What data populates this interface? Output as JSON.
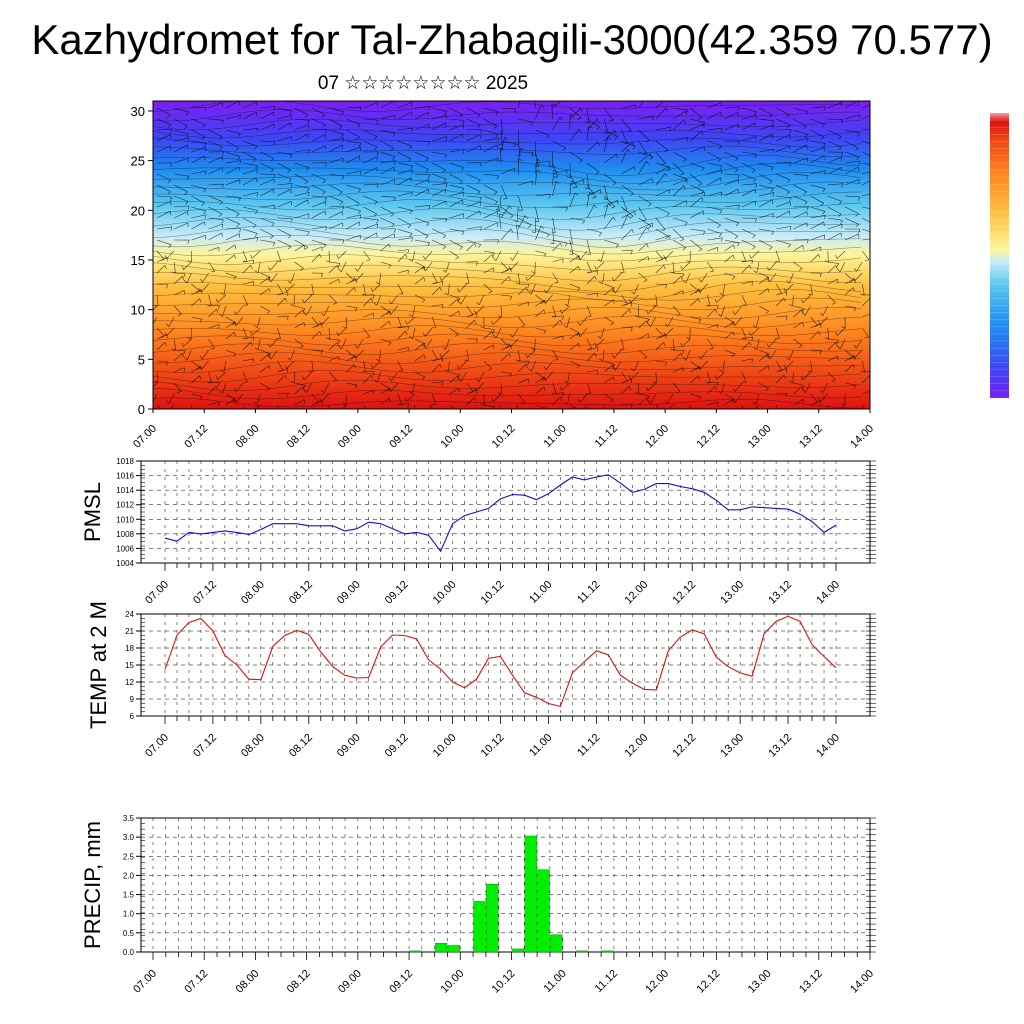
{
  "header": {
    "title": "Kazhydromet for Tal-Zhabagili-3000(42.359 70.577)",
    "subtitle": "07 ☆☆☆☆☆☆☆☆ 2025"
  },
  "colors": {
    "pmsl_line": "#1010cc",
    "temp_line": "#dd1010",
    "precip_bar": "#00ee00",
    "precip_bar_edge": "#009900",
    "grid": "#000000"
  },
  "chart_data": [
    {
      "type": "heatmap",
      "yticks": [
        "0",
        "5",
        "10",
        "15",
        "20",
        "25",
        "30"
      ],
      "ylim": [
        0,
        31
      ],
      "xticks": [
        "07.00",
        "07.12",
        "08.00",
        "08.12",
        "09.00",
        "09.12",
        "10.00",
        "10.12",
        "11.00",
        "11.12",
        "12.00",
        "12.12",
        "13.00",
        "13.12",
        "14.00"
      ],
      "colormap": [
        "#7a1ff0",
        "#3f44f4",
        "#1e8cf0",
        "#5cc8f0",
        "#c8ecf8",
        "#fff59a",
        "#ffc040",
        "#ff8a20",
        "#f04a16",
        "#dd1212"
      ],
      "legend": "right colorbar, unlabeled",
      "overlay": "wind barbs"
    },
    {
      "type": "line",
      "ylabel": "PMSL",
      "yticks": [
        "1004",
        "1006",
        "1008",
        "1010",
        "1012",
        "1014",
        "1016",
        "1018"
      ],
      "ylim": [
        1004,
        1018
      ],
      "xticks": [
        "07.00",
        "07.12",
        "08.00",
        "08.12",
        "09.00",
        "09.12",
        "10.00",
        "10.12",
        "11.00",
        "11.12",
        "12.00",
        "12.12",
        "13.00",
        "13.12",
        "14.00"
      ],
      "x_hours": [
        0,
        3,
        6,
        9,
        12,
        15,
        18,
        21,
        24,
        27,
        30,
        33,
        36,
        39,
        42,
        45,
        48,
        51,
        54,
        57,
        60,
        63,
        66,
        69,
        72,
        75,
        78,
        81,
        84,
        87,
        90,
        93,
        96,
        99,
        102,
        105,
        108,
        111,
        114,
        117,
        120,
        123,
        126,
        129,
        132,
        135,
        138,
        141,
        144,
        147,
        150,
        153,
        156,
        159,
        162,
        165,
        168
      ],
      "values": [
        1007.4,
        1007.0,
        1008.2,
        1008.0,
        1008.2,
        1008.4,
        1008.2,
        1007.9,
        1008.6,
        1009.4,
        1009.4,
        1009.4,
        1009.1,
        1009.1,
        1009.1,
        1008.4,
        1008.7,
        1009.6,
        1009.4,
        1008.7,
        1008.0,
        1008.2,
        1007.8,
        1005.6,
        1009.4,
        1010.5,
        1011.0,
        1011.5,
        1012.8,
        1013.4,
        1013.3,
        1012.7,
        1013.5,
        1014.7,
        1015.8,
        1015.4,
        1015.8,
        1016.1,
        1015.0,
        1013.7,
        1014.1,
        1014.9,
        1014.9,
        1014.5,
        1014.2,
        1013.7,
        1012.6,
        1011.3,
        1011.3,
        1011.7,
        1011.6,
        1011.5,
        1011.4,
        1010.7,
        1009.7,
        1008.2,
        1009.2
      ]
    },
    {
      "type": "line",
      "ylabel": "TEMP at 2 M",
      "yticks": [
        "6",
        "9",
        "12",
        "15",
        "18",
        "21",
        "24"
      ],
      "ylim": [
        6,
        24
      ],
      "xticks": [
        "07.00",
        "07.12",
        "08.00",
        "08.12",
        "09.00",
        "09.12",
        "10.00",
        "10.12",
        "11.00",
        "11.12",
        "12.00",
        "12.12",
        "13.00",
        "13.12",
        "14.00"
      ],
      "x_hours": [
        0,
        3,
        6,
        9,
        12,
        15,
        18,
        21,
        24,
        27,
        30,
        33,
        36,
        39,
        42,
        45,
        48,
        51,
        54,
        57,
        60,
        63,
        66,
        69,
        72,
        75,
        78,
        81,
        84,
        87,
        90,
        93,
        96,
        99,
        102,
        105,
        108,
        111,
        114,
        117,
        120,
        123,
        126,
        129,
        132,
        135,
        138,
        141,
        144,
        147,
        150,
        153,
        156,
        159,
        162,
        165,
        168
      ],
      "values": [
        14.2,
        20.3,
        22.5,
        23.2,
        21.0,
        16.7,
        15.0,
        12.5,
        12.4,
        18.3,
        20.2,
        21.1,
        20.4,
        17.3,
        14.7,
        13.2,
        12.7,
        12.8,
        18.2,
        20.3,
        20.2,
        19.6,
        15.9,
        14.3,
        12.0,
        11.0,
        12.5,
        16.2,
        16.5,
        13.2,
        10.1,
        9.3,
        8.2,
        7.7,
        13.6,
        15.6,
        17.5,
        16.8,
        13.2,
        11.8,
        10.7,
        10.6,
        17.5,
        19.9,
        21.2,
        20.5,
        16.4,
        14.7,
        13.6,
        13.0,
        20.5,
        22.7,
        23.6,
        22.7,
        18.6,
        16.5,
        14.5
      ]
    },
    {
      "type": "bar",
      "ylabel": "PRECIP, mm",
      "yticks": [
        "0.0",
        "0.5",
        "1.0",
        "1.5",
        "2.0",
        "2.5",
        "3.0",
        "3.5"
      ],
      "ylim": [
        0,
        3.5
      ],
      "xticks": [
        "07.00",
        "07.12",
        "08.00",
        "08.12",
        "09.00",
        "09.12",
        "10.00",
        "10.12",
        "11.00",
        "11.12",
        "12.00",
        "12.12",
        "13.00",
        "13.12",
        "14.00"
      ],
      "x_hours": [
        60,
        66,
        69,
        75,
        78,
        84,
        87,
        90,
        93,
        99,
        105
      ],
      "values": [
        0.03,
        0.23,
        0.17,
        1.32,
        1.77,
        0.08,
        3.03,
        2.15,
        0.45,
        0.03,
        0.03
      ]
    }
  ]
}
